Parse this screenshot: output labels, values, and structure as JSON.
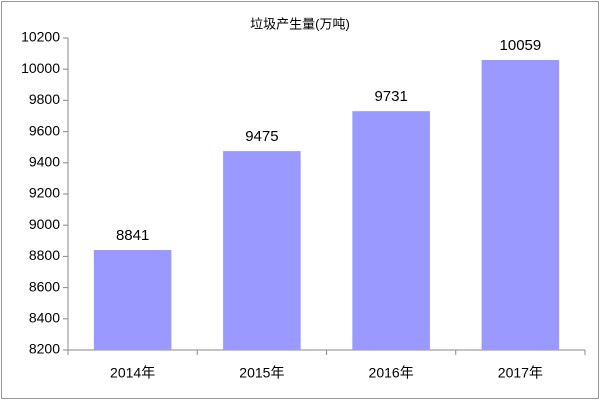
{
  "chart_data": {
    "type": "bar",
    "title": "垃圾产生量(万吨)",
    "categories": [
      "2014年",
      "2015年",
      "2016年",
      "2017年"
    ],
    "values": [
      8841,
      9475,
      9731,
      10059
    ],
    "color": "#9999ff",
    "ylim": [
      8200,
      10200
    ],
    "yticks": [
      8200,
      8400,
      8600,
      8800,
      9000,
      9200,
      9400,
      9600,
      9800,
      10000,
      10200
    ],
    "grid": false
  }
}
